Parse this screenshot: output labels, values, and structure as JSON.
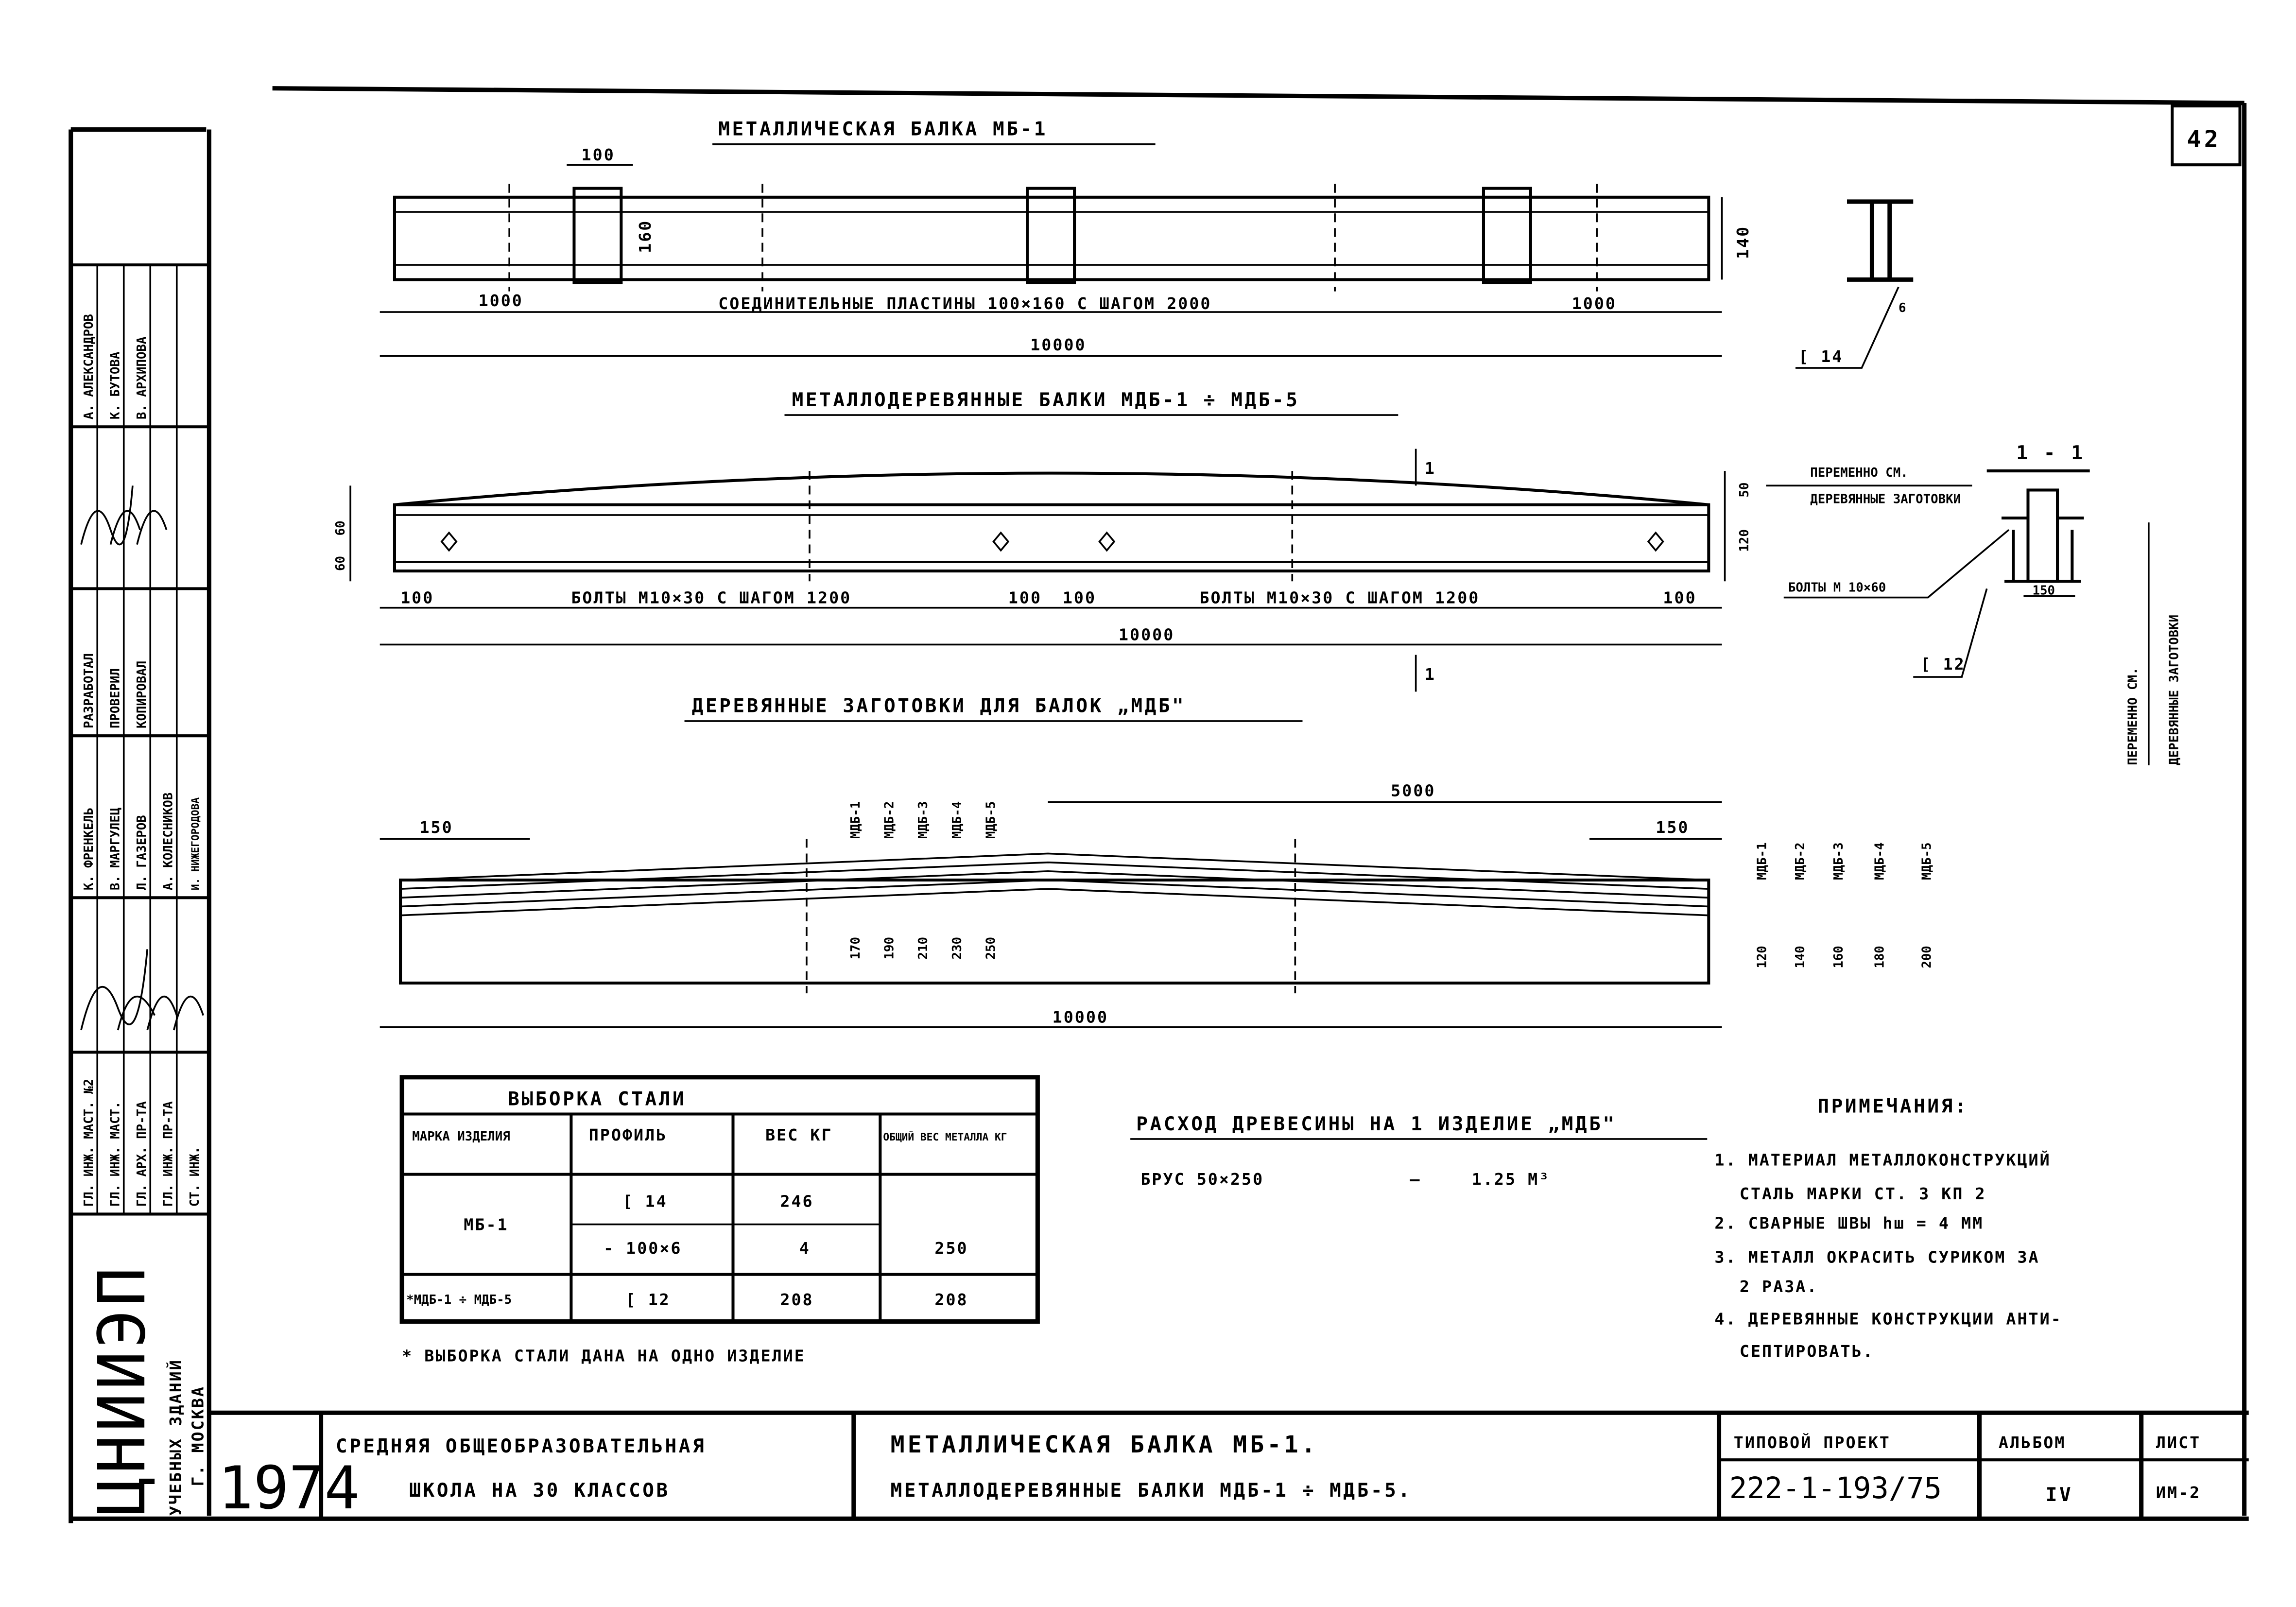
{
  "sheet_number": "42",
  "beam_mb1": {
    "title": "МЕТАЛЛИЧЕСКАЯ БАЛКА МБ-1",
    "dim_plate_width": "100",
    "dim_plate_height": "160",
    "dim_height": "140",
    "dim_left": "1000",
    "dim_right": "1000",
    "plates_note": "СОЕДИНИТЕЛЬНЫЕ ПЛАСТИНЫ 100×160 С ШАГОМ 2000",
    "dim_total": "10000",
    "section_weld": "6",
    "section_profile": "[ 14"
  },
  "beam_mdb": {
    "title": "МЕТАЛЛОДЕРЕВЯННЫЕ БАЛКИ МДБ-1 ÷ МДБ-5",
    "section_mark_top": "1",
    "section_mark_bottom": "1",
    "dim_left_a": "60",
    "dim_left_b": "60",
    "dim_right_top": "50",
    "dim_right_bottom": "120",
    "dim_end_left": "100",
    "bolts_left": "БОЛТЫ  М10×30  С ШАГОМ 1200",
    "dim_mid_a": "100",
    "dim_mid_b": "100",
    "bolts_right": "БОЛТЫ  М10×30  С ШАГОМ 1200",
    "dim_end_right": "100",
    "dim_total": "10000",
    "note_variable": "ПЕРЕМЕННО СМ.",
    "note_wood": "ДЕРЕВЯННЫЕ ЗАГОТОВКИ",
    "note_bolts": "БОЛТЫ М 10×60",
    "note_profile": "[ 12"
  },
  "section_1_1": {
    "title": "1 - 1",
    "dim_width": "150",
    "note_variable": "ПЕРЕМЕННО СМ.",
    "note_wood": "ДЕРЕВЯННЫЕ ЗАГОТОВКИ"
  },
  "wood_blanks": {
    "title": "ДЕРЕВЯННЫЕ ЗАГОТОВКИ ДЛЯ БАЛОК „МДБ\"",
    "dim_left": "150",
    "dim_half": "5000",
    "dim_right": "150",
    "dim_total": "10000",
    "mid_marks": [
      "МДБ-1",
      "МДБ-2",
      "МДБ-3",
      "МДБ-4",
      "МДБ-5"
    ],
    "mid_heights": [
      "170",
      "190",
      "210",
      "230",
      "250"
    ],
    "end_marks": [
      "МДБ-1",
      "МДБ-2",
      "МДБ-3",
      "МДБ-4",
      "МДБ-5"
    ],
    "end_heights": [
      "120",
      "140",
      "160",
      "180",
      "200"
    ]
  },
  "steel_table": {
    "title": "ВЫБОРКА   СТАЛИ",
    "headers": [
      "МАРКА ИЗДЕЛИЯ",
      "ПРОФИЛЬ",
      "ВЕС КГ",
      "ОБЩИЙ ВЕС МЕТАЛЛА КГ"
    ],
    "rows": [
      {
        "mark": "МБ-1",
        "profile": "[ 14",
        "weight": "246",
        "total": ""
      },
      {
        "mark": "",
        "profile": "- 100×6",
        "weight": "4",
        "total": "250"
      },
      {
        "mark": "*МДБ-1 ÷ МДБ-5",
        "profile": "[ 12",
        "weight": "208",
        "total": "208"
      }
    ],
    "footnote": "* ВЫБОРКА СТАЛИ ДАНА НА ОДНО ИЗДЕЛИЕ"
  },
  "wood_consumption": {
    "title": "РАСХОД ДРЕВЕСИНЫ НА 1 ИЗДЕЛИЕ „МДБ\"",
    "item": "БРУС 50×250",
    "dash": "—",
    "value": "1.25 М³"
  },
  "notes": {
    "title": "ПРИМЕЧАНИЯ:",
    "items": [
      "1. МАТЕРИАЛ МЕТАЛЛОКОНСТРУКЦИЙ",
      "СТАЛЬ МАРКИ СТ. 3 КП 2",
      "2. СВАРНЫЕ ШВЫ hш = 4 ММ",
      "3. МЕТАЛЛ ОКРАСИТЬ СУРИКОМ ЗА",
      "2 РАЗА.",
      "4. ДЕРЕВЯННЫЕ КОНСТРУКЦИИ АНТИ-",
      "СЕПТИРОВАТЬ."
    ]
  },
  "title_block": {
    "year": "1974",
    "project_line1": "СРЕДНЯЯ  ОБЩЕОБРАЗОВАТЕЛЬНАЯ",
    "project_line2": "ШКОЛА НА 30 КЛАССОВ",
    "drawing_line1": "МЕТАЛЛИЧЕСКАЯ  БАЛКА  МБ-1.",
    "drawing_line2": "МЕТАЛЛОДЕРЕВЯННЫЕ  БАЛКИ  МДБ-1 ÷ МДБ-5.",
    "typical_project_label": "ТИПОВОЙ ПРОЕКТ",
    "typical_project_value": "222-1-193/75",
    "album_label": "АЛЬБОМ",
    "album_value": "IV",
    "sheet_label": "ЛИСТ",
    "sheet_value": "ИМ-2"
  },
  "side_block": {
    "org_logo": "ЦНИИЭП",
    "org_line1": "УЧЕБНЫХ ЗДАНИЙ",
    "org_line2": "Г. МОСКВА",
    "positions": [
      "ГЛ. ИНЖ. МАСТ. №2",
      "ГЛ. ИНЖ. МАСТ.",
      "ГЛ. АРХ. ПР-ТА",
      "ГЛ. ИНЖ. ПР-ТА",
      "СТ. ИНЖ."
    ],
    "position_names": [
      "К. ФРЕНКЕЛЬ",
      "В. МАРГУЛЕЦ",
      "Л. ГАЗЕРОВ",
      "А. КОЛЕСНИКОВ",
      "И. НИЖЕГОРОДОВА"
    ],
    "roles": [
      "РАЗРАБОТАЛ",
      "ПРОВЕРИЛ",
      "КОПИРОВАЛ"
    ],
    "role_names": [
      "А. АЛЕКСАНДРОВ",
      "К. БУТОВА",
      "В. АРХИПОВА"
    ]
  }
}
